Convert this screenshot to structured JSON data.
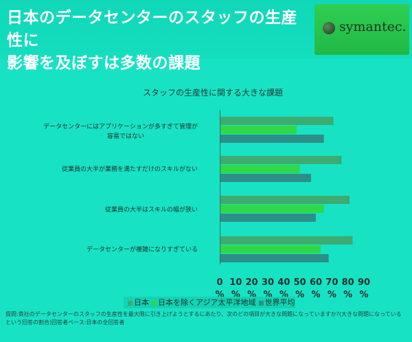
{
  "slide": {
    "title_line1": "日本のデータセンターのスタッフの生産性に",
    "title_line2": "影響を及ぼすは多数の課題",
    "logo_text": "symantec."
  },
  "chart_data": {
    "type": "bar",
    "orientation": "horizontal",
    "title": "スタッフの生産性に関する大きな課題",
    "categories": [
      "データセンターにはアプリケーションが多すぎて管理が容易ではない",
      "従業員の大半が業務を満たすだけのスキルがない",
      "従業員の大半はスキルの幅が狭い",
      "データセンターが複雑になりすぎている"
    ],
    "series": [
      {
        "name": "日本",
        "color": "#3cac70",
        "values": [
          71,
          76,
          81,
          83
        ]
      },
      {
        "name": "日本を除くアジア太平洋地域",
        "color": "#2fd847",
        "values": [
          48,
          50,
          65,
          63
        ]
      },
      {
        "name": "世界平均",
        "color": "#2c8f88",
        "values": [
          65,
          57,
          60,
          68
        ]
      }
    ],
    "x_ticks": [
      "0%",
      "10%",
      "20%",
      "30%",
      "40%",
      "50%",
      "60%",
      "70%",
      "80%",
      "90%"
    ],
    "xlim": [
      0,
      90
    ],
    "legend_position": "bottom"
  },
  "footnote": "質問:貴社のデータセンターのスタッフの生産性を最大限に引き上げようとするにあたり、次のどの項目が大きな問題になっていますか?(大きな問題になっているという回答の割合)回答者ベース:日本の全回答者"
}
